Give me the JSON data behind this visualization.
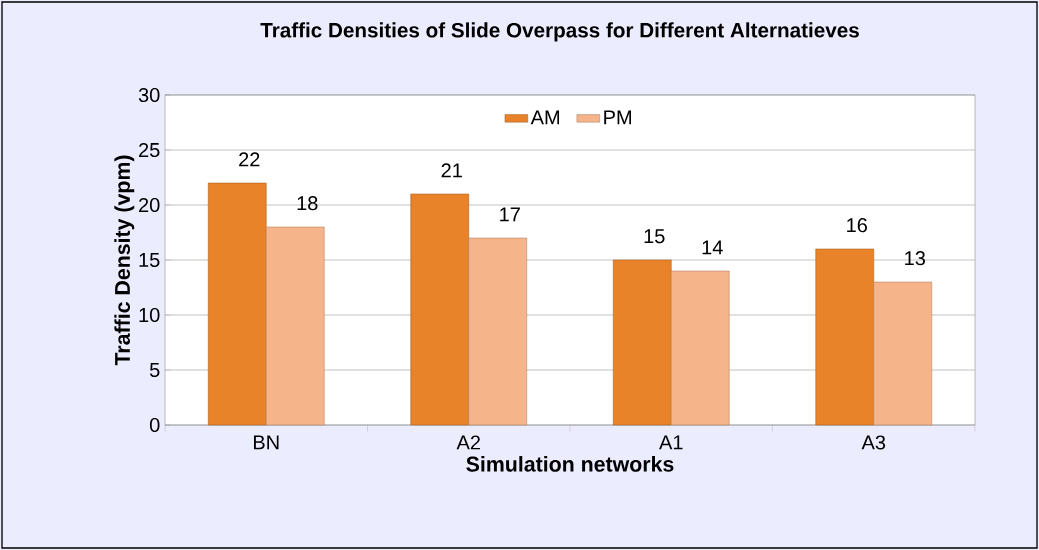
{
  "chart_data": {
    "type": "bar",
    "title": "Traffic Densities of  Slide Overpass for Different Alternatieves",
    "xlabel": "Simulation networks",
    "ylabel": "Traffic Density (vpm)",
    "categories": [
      "BN",
      "A2",
      "A1",
      "A3"
    ],
    "series": [
      {
        "name": "AM",
        "color": "#e8832a",
        "values": [
          22,
          21,
          15,
          16
        ]
      },
      {
        "name": "PM",
        "color": "#f5b48a",
        "values": [
          18,
          17,
          14,
          13
        ]
      }
    ],
    "ylim": [
      0,
      30
    ],
    "yticks": [
      0,
      5,
      10,
      15,
      20,
      25,
      30
    ],
    "grid": "y",
    "legend": "top",
    "data_labels": true
  }
}
